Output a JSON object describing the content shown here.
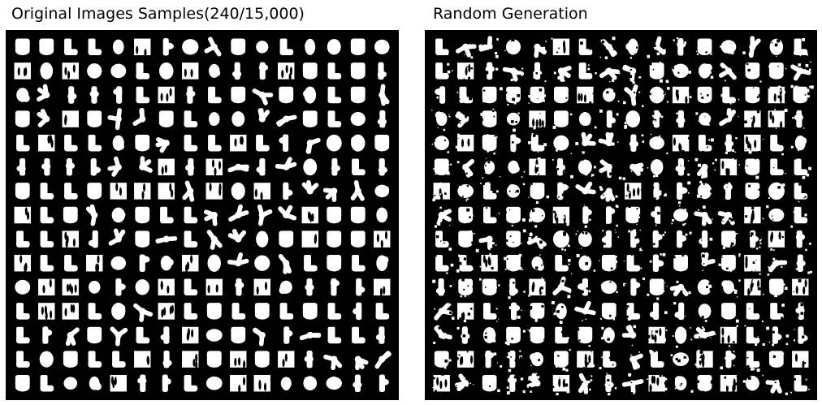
{
  "panels": {
    "original": {
      "title": "Original Images Samples(240/15,000)",
      "rows": 15,
      "cols": 16,
      "background_color": "#000000",
      "shape_color": "#ffffff"
    },
    "generated": {
      "title": "Random Generation",
      "rows": 15,
      "cols": 16,
      "background_color": "#000000",
      "shape_color": "#ffffff"
    }
  }
}
